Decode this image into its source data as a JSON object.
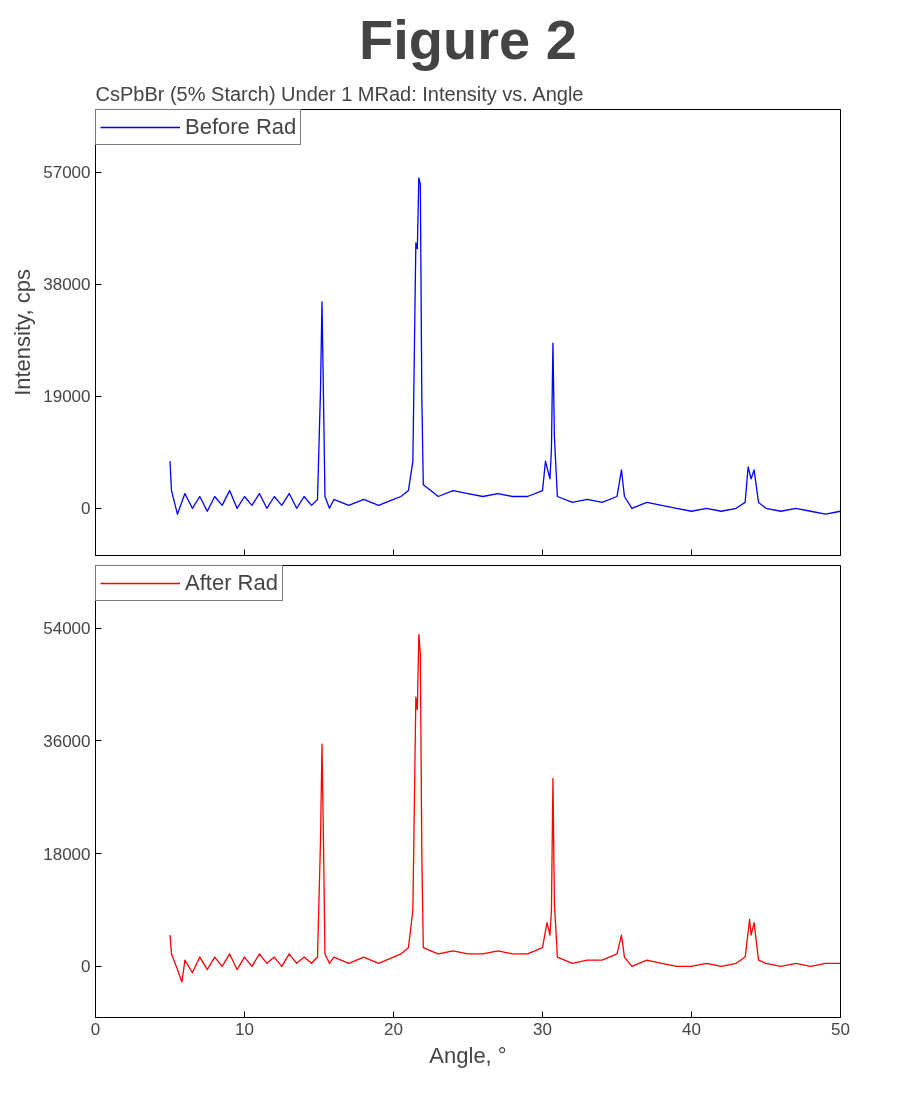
{
  "chart_data": [
    {
      "type": "line",
      "title": "Figure 2",
      "subtitle": "CsPbBr (5% Starch) Under 1 MRad: Intensity vs. Angle",
      "ylabel": "Intensity, cps",
      "x": [
        5.0,
        5.1,
        5.5,
        6,
        6.5,
        7,
        7.5,
        8,
        8.5,
        9,
        9.5,
        10,
        10.5,
        11,
        11.5,
        12,
        12.5,
        13,
        13.5,
        14,
        14.5,
        14.9,
        15.1,
        15.2,
        15.3,
        15.4,
        15.7,
        16,
        17,
        18,
        19,
        20,
        20.5,
        21,
        21.3,
        21.5,
        21.6,
        21.7,
        21.8,
        21.9,
        22,
        22.5,
        23,
        24,
        25,
        26,
        27,
        28,
        29,
        30,
        30.2,
        30.5,
        30.6,
        30.7,
        30.8,
        31,
        32,
        33,
        34,
        35,
        35.3,
        35.5,
        36,
        37,
        38,
        39,
        40,
        41,
        42,
        43,
        43.6,
        43.8,
        44,
        44.2,
        44.5,
        45,
        46,
        47,
        48,
        49,
        50
      ],
      "series": [
        {
          "name": "Before Rad",
          "color": "#0000ff",
          "values": [
            8000,
            3000,
            -1000,
            2500,
            0,
            2000,
            -500,
            2000,
            500,
            3000,
            0,
            2000,
            500,
            2500,
            0,
            2000,
            500,
            2500,
            0,
            2000,
            500,
            1500,
            20000,
            35000,
            19000,
            2000,
            0,
            1500,
            500,
            1500,
            500,
            1500,
            2000,
            3000,
            8000,
            45000,
            44000,
            56000,
            55000,
            19000,
            4000,
            3000,
            2000,
            3000,
            2500,
            2000,
            2500,
            2000,
            2000,
            3000,
            8000,
            5000,
            10000,
            28000,
            12000,
            2000,
            1000,
            1500,
            1000,
            2000,
            6500,
            2000,
            0,
            1000,
            500,
            0,
            -500,
            0,
            -500,
            0,
            1000,
            7000,
            5000,
            6500,
            1000,
            0,
            -500,
            0,
            -500,
            -1000,
            -500
          ]
        }
      ],
      "xlim": [
        0,
        50
      ],
      "xticks": [
        0,
        10,
        20,
        30,
        40,
        50
      ],
      "ylim": [
        -8000,
        67600
      ],
      "yticks": [
        0,
        19000,
        38000,
        57000
      ],
      "tick_labels": "y",
      "legend": "top left",
      "grid": false
    },
    {
      "type": "line",
      "xlabel": "Angle, °",
      "x": [
        5.0,
        5.1,
        5.5,
        5.8,
        6,
        6.5,
        7,
        7.5,
        8,
        8.5,
        9,
        9.5,
        10,
        10.5,
        11,
        11.5,
        12,
        12.5,
        13,
        13.5,
        14,
        14.5,
        14.9,
        15.1,
        15.2,
        15.3,
        15.4,
        15.7,
        16,
        17,
        18,
        19,
        20,
        20.5,
        21,
        21.3,
        21.5,
        21.6,
        21.7,
        21.8,
        21.9,
        22,
        22.5,
        23,
        24,
        25,
        26,
        27,
        28,
        29,
        30,
        30.3,
        30.5,
        30.6,
        30.7,
        30.8,
        31,
        32,
        33,
        34,
        35,
        35.3,
        35.5,
        36,
        37,
        38,
        39,
        40,
        41,
        42,
        43,
        43.6,
        43.9,
        44,
        44.2,
        44.5,
        45,
        46,
        47,
        48,
        49,
        50
      ],
      "series": [
        {
          "name": "After Rad",
          "color": "#ff0000",
          "values": [
            5000,
            2000,
            -500,
            -2500,
            1000,
            -1000,
            1500,
            -500,
            1500,
            0,
            2000,
            -500,
            1500,
            0,
            2000,
            500,
            1500,
            0,
            2000,
            500,
            1500,
            500,
            1500,
            20000,
            35500,
            20000,
            2000,
            500,
            1500,
            500,
            1500,
            500,
            1500,
            2000,
            3000,
            9000,
            43000,
            41000,
            53000,
            50000,
            18000,
            3000,
            2500,
            2000,
            2500,
            2000,
            2000,
            2500,
            2000,
            2000,
            3000,
            7000,
            5000,
            9000,
            30000,
            10000,
            1500,
            500,
            1000,
            1000,
            2000,
            5000,
            1500,
            0,
            1000,
            500,
            0,
            0,
            500,
            0,
            500,
            1500,
            7500,
            5000,
            7000,
            1000,
            500,
            0,
            500,
            0,
            500,
            500
          ]
        }
      ],
      "xlim": [
        0,
        50
      ],
      "xticks": [
        0,
        10,
        20,
        30,
        40,
        50
      ],
      "ylim": [
        -8150,
        64000
      ],
      "yticks": [
        0,
        18000,
        36000,
        54000
      ],
      "legend": "top left",
      "grid": false
    }
  ]
}
